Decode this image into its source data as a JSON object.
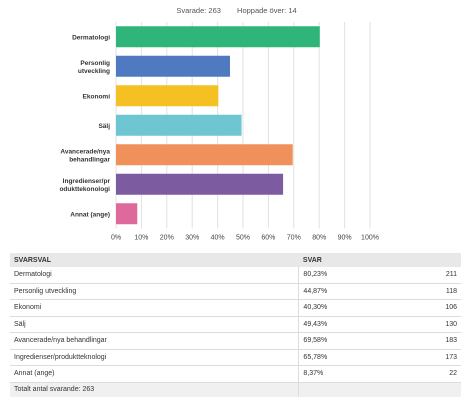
{
  "summary": {
    "answered": "Svarade: 263",
    "skipped": "Hoppade över: 14"
  },
  "chart_data": {
    "type": "bar",
    "orientation": "horizontal",
    "categories": [
      "Dermatologi",
      "Personlig utveckling",
      "Ekonomi",
      "Sälj",
      "Avancerade/nya behandlingar",
      "Ingredienser/produktteknologi",
      "Annat (ange)"
    ],
    "category_labels": [
      [
        "Dermatologi"
      ],
      [
        "Personlig",
        "utveckling"
      ],
      [
        "Ekonomi"
      ],
      [
        "Sälj"
      ],
      [
        "Avancerade/nya",
        "behandlingar"
      ],
      [
        "Ingredienser/pr",
        "odukttekonologi"
      ],
      [
        "Annat (ange)"
      ]
    ],
    "values": [
      80.23,
      44.87,
      40.3,
      49.43,
      69.58,
      65.78,
      8.37
    ],
    "colors": [
      "#2fb579",
      "#4f7ac1",
      "#f4c022",
      "#6ec6d3",
      "#f0905a",
      "#7d5ba1",
      "#de6a9c"
    ],
    "xlim": [
      0,
      100
    ],
    "xticks": [
      "0%",
      "10%",
      "20%",
      "30%",
      "40%",
      "50%",
      "60%",
      "70%",
      "80%",
      "90%",
      "100%"
    ],
    "grid": true
  },
  "table": {
    "headers": [
      "SVARSVAL",
      "SVAR"
    ],
    "rows": [
      {
        "label": "Dermatologi",
        "pct": "80,23%",
        "count": "211"
      },
      {
        "label": "Personlig utveckling",
        "pct": "44,87%",
        "count": "118"
      },
      {
        "label": "Ekonomi",
        "pct": "40,30%",
        "count": "106"
      },
      {
        "label": "Sälj",
        "pct": "49,43%",
        "count": "130"
      },
      {
        "label": "Avancerade/nya behandlingar",
        "pct": "69,58%",
        "count": "183"
      },
      {
        "label": "Ingredienser/produktteknologi",
        "pct": "65,78%",
        "count": "173"
      },
      {
        "label": "Annat (ange)",
        "pct": "8,37%",
        "count": "22"
      }
    ],
    "total": "Totalt antal svarande: 263"
  }
}
